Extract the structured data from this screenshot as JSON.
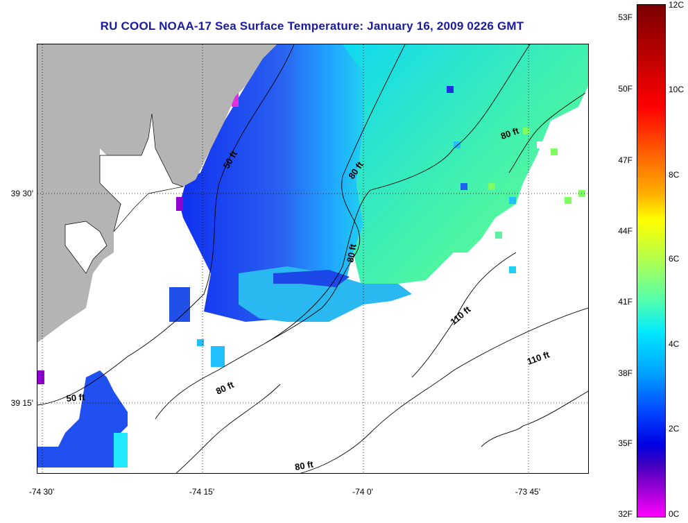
{
  "title": "RU COOL  NOAA-17  Sea Surface Temperature:  January 16, 2009 0226 GMT",
  "map": {
    "latitude_labels": [
      "39 30'",
      "39 15'"
    ],
    "longitude_labels": [
      "-74 30'",
      "-74 15'",
      "-74 0'",
      "-73 45'"
    ],
    "isobath_labels": [
      "50 ft",
      "80 ft",
      "80 ft",
      "80 ft",
      "110 ft",
      "110 ft",
      "80 ft",
      "50 ft",
      "80 ft"
    ],
    "land_color": "#b4b4b4",
    "no_data_color": "#ffffff"
  },
  "colorbar": {
    "fahrenheit_labels": [
      "53F",
      "50F",
      "47F",
      "44F",
      "41F",
      "38F",
      "35F",
      "32F"
    ],
    "celsius_labels": [
      "12C",
      "10C",
      "8C",
      "6C",
      "4C",
      "2C",
      "0C"
    ],
    "scale": [
      "#7a0000",
      "#ff0000",
      "#ff6a00",
      "#ffff00",
      "#50ffb0",
      "#00e8ff",
      "#00a0ff",
      "#0040ff",
      "#0000e0",
      "#9000d0",
      "#ff00ff"
    ]
  }
}
